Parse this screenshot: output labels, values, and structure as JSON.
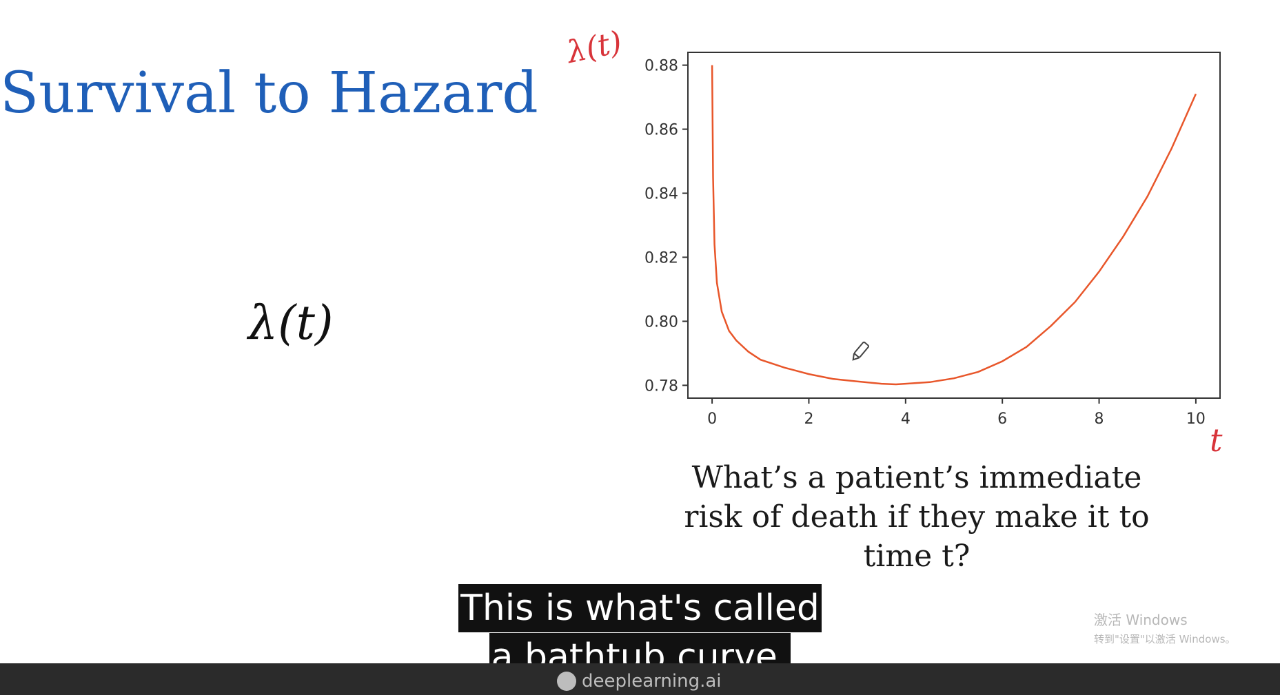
{
  "slide": {
    "title": "Survival to Hazard",
    "formula": "λ(t)",
    "question": "What’s a patient’s immediate risk of death if they make it to time t?"
  },
  "annotations": {
    "y_handwritten": "λ(t)",
    "x_handwritten": "t",
    "ink_color": "#d8343a"
  },
  "chart_data": {
    "type": "line",
    "title": "",
    "xlabel": "",
    "ylabel": "",
    "xlim": [
      -0.5,
      10.5
    ],
    "ylim": [
      0.776,
      0.884
    ],
    "x_ticks": [
      0,
      2,
      4,
      6,
      8,
      10
    ],
    "x_tick_labels": [
      "0",
      "2",
      "4",
      "6",
      "8",
      "10"
    ],
    "y_ticks": [
      0.78,
      0.8,
      0.82,
      0.84,
      0.86,
      0.88
    ],
    "y_tick_labels": [
      "0.78",
      "0.80",
      "0.82",
      "0.84",
      "0.86",
      "0.88"
    ],
    "grid": false,
    "line_color": "#e8562a",
    "series": [
      {
        "x": [
          0.0,
          0.02,
          0.05,
          0.1,
          0.2,
          0.35,
          0.5,
          0.75,
          1.0,
          1.5,
          2.0,
          2.5,
          3.0,
          3.5,
          3.8,
          4.0,
          4.5,
          5.0,
          5.5,
          6.0,
          6.5,
          7.0,
          7.5,
          8.0,
          8.5,
          9.0,
          9.5,
          10.0
        ],
        "values": [
          0.88,
          0.845,
          0.824,
          0.812,
          0.803,
          0.797,
          0.794,
          0.7905,
          0.788,
          0.7855,
          0.7835,
          0.782,
          0.7812,
          0.7805,
          0.7803,
          0.7805,
          0.781,
          0.7822,
          0.7842,
          0.7875,
          0.792,
          0.7985,
          0.806,
          0.8155,
          0.8265,
          0.839,
          0.854,
          0.871
        ]
      }
    ]
  },
  "subtitle": {
    "line1": "This is what's called",
    "line2": "a bathtub curve,"
  },
  "footer": {
    "brand": "deeplearning.ai"
  },
  "watermark": {
    "line1": "激活 Windows",
    "line2": "转到\"设置\"以激活 Windows。"
  }
}
